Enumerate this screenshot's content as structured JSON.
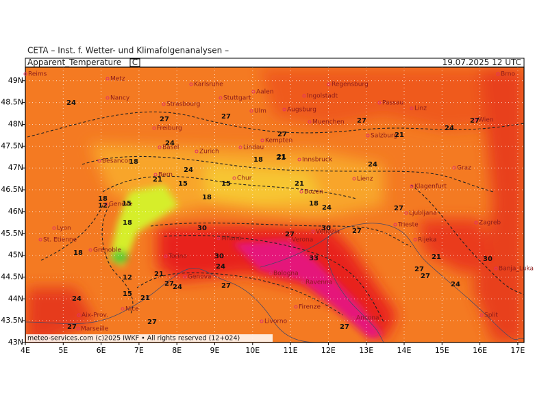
{
  "header": {
    "institute": "CETA – Inst. f. Wetter- und Klimafolgenanalysen –",
    "field": "Apparent_Temperature",
    "unit": "C",
    "valid_time": "19.07.2025 12 UTC"
  },
  "footer": "meteo-services.com (c)2025 IWKF • All rights reserved (12+024)",
  "lon_ticks": [
    {
      "value": 4,
      "label": "4E"
    },
    {
      "value": 5,
      "label": "5E"
    },
    {
      "value": 6,
      "label": "6E"
    },
    {
      "value": 7,
      "label": "7E"
    },
    {
      "value": 8,
      "label": "8E"
    },
    {
      "value": 9,
      "label": "9E"
    },
    {
      "value": 10,
      "label": "10E"
    },
    {
      "value": 11,
      "label": "11E"
    },
    {
      "value": 12,
      "label": "12E"
    },
    {
      "value": 13,
      "label": "13E"
    },
    {
      "value": 14,
      "label": "14E"
    },
    {
      "value": 15,
      "label": "15E"
    },
    {
      "value": 16,
      "label": "16E"
    },
    {
      "value": 17,
      "label": "17E"
    }
  ],
  "lat_ticks": [
    {
      "value": 49,
      "label": "49N"
    },
    {
      "value": 48.5,
      "label": "48.5N"
    },
    {
      "value": 48,
      "label": "48N"
    },
    {
      "value": 47.5,
      "label": "47.5N"
    },
    {
      "value": 47,
      "label": "47N"
    },
    {
      "value": 46.5,
      "label": "46.5N"
    },
    {
      "value": 46,
      "label": "46N"
    },
    {
      "value": 45.5,
      "label": "45.5N"
    },
    {
      "value": 45,
      "label": "45N"
    },
    {
      "value": 44.5,
      "label": "44.5N"
    },
    {
      "value": 44,
      "label": "44N"
    },
    {
      "value": 43.5,
      "label": "43.5N"
    },
    {
      "value": 43,
      "label": "43N"
    }
  ],
  "cities": [
    "Reims",
    "Metz",
    "Karlsruhe",
    "Nancy",
    "Aalen",
    "Ingolstadt",
    "Regensburg",
    "Passau",
    "Strasbourg",
    "Stuttgart",
    "Ulm",
    "Augsburg",
    "Linz",
    "Freiburg",
    "Muenchen",
    "Wien",
    "Basel",
    "Zurich",
    "Lindau",
    "Kempten",
    "Salzburg",
    "Besancon",
    "Bern",
    "Innsbruck",
    "Graz",
    "Chur",
    "Lienz",
    "Bozen",
    "Klagenfurt",
    "Lyon",
    "Geneve",
    "Ljubljana",
    "Zagreb",
    "St. Etienne",
    "Milano",
    "Verona",
    "Venezia",
    "Trieste",
    "Rijeka",
    "Grenoble",
    "Torino",
    "Bologna",
    "Genova",
    "Ravenna",
    "Banja_Luka",
    "Nice",
    "Firenze",
    "Aix-Prov.",
    "Marseille",
    "Livorno",
    "Ancona",
    "Split",
    "Brno"
  ],
  "contour_labels": [
    24,
    27,
    21,
    27,
    27,
    24,
    27,
    27,
    24,
    21,
    18,
    24,
    18,
    21,
    24,
    15,
    15,
    18,
    21,
    21,
    18,
    18,
    15,
    18,
    12,
    21,
    30,
    27,
    30,
    27,
    24,
    27,
    21,
    27,
    30,
    18,
    30,
    33,
    24,
    12,
    27,
    24,
    15,
    27,
    24,
    27,
    27,
    21,
    24,
    27,
    27
  ]
}
